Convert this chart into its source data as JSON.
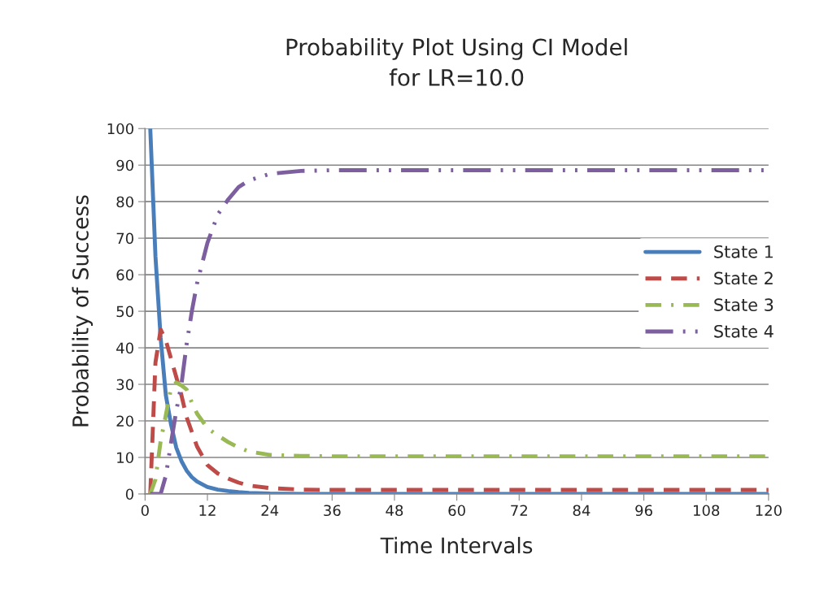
{
  "chart_data": {
    "type": "line",
    "title": "Probability Plot Using CI Model\nfor LR=10.0",
    "xlabel": "Time Intervals",
    "ylabel": "Probability of Success",
    "x": [
      1,
      2,
      3,
      4,
      5,
      6,
      7,
      8,
      9,
      10,
      12,
      14,
      16,
      18,
      20,
      24,
      30,
      36,
      48,
      60,
      72,
      84,
      96,
      108,
      120
    ],
    "series": [
      {
        "name": "State 1",
        "color": "#4a7ebb",
        "line_style": "solid",
        "values": [
          100,
          65,
          42.7,
          27,
          19,
          12.7,
          9,
          6.4,
          4.6,
          3.4,
          1.9,
          1.2,
          0.8,
          0.5,
          0.3,
          0.1,
          0,
          0,
          0,
          0,
          0,
          0,
          0,
          0,
          0
        ]
      },
      {
        "name": "State 2",
        "color": "#be4b48",
        "line_style": "dashed",
        "values": [
          0,
          36,
          45,
          42,
          37,
          32,
          27,
          21,
          17,
          13,
          7.9,
          5.6,
          4.2,
          3.1,
          2.3,
          1.6,
          1.2,
          1.1,
          1.1,
          1.1,
          1.1,
          1.1,
          1.1,
          1.1,
          1.1
        ]
      },
      {
        "name": "State 3",
        "color": "#98b954",
        "line_style": "dashdot",
        "values": [
          0,
          4,
          14.5,
          21.6,
          29,
          30.5,
          29.7,
          28.6,
          25,
          22,
          18,
          16,
          14.2,
          12.7,
          11.6,
          10.7,
          10.4,
          10.3,
          10.3,
          10.3,
          10.3,
          10.3,
          10.3,
          10.3,
          10.3
        ]
      },
      {
        "name": "State 4",
        "color": "#7d5fa0",
        "line_style": "longdashdotdot",
        "values": [
          0,
          0,
          0,
          5,
          14,
          22.7,
          30,
          41,
          50,
          57.6,
          68.7,
          76.5,
          80.6,
          84,
          85.8,
          87.6,
          88.4,
          88.6,
          88.6,
          88.6,
          88.6,
          88.6,
          88.6,
          88.6,
          88.6
        ]
      }
    ],
    "xlim": [
      0,
      120
    ],
    "xticks": [
      0,
      12,
      24,
      36,
      48,
      60,
      72,
      84,
      96,
      108,
      120
    ],
    "ylim": [
      0,
      100
    ],
    "yticks": [
      0,
      10,
      20,
      30,
      40,
      50,
      60,
      70,
      80,
      90,
      100
    ],
    "grid": "y",
    "legend": "right",
    "marker": "none"
  }
}
